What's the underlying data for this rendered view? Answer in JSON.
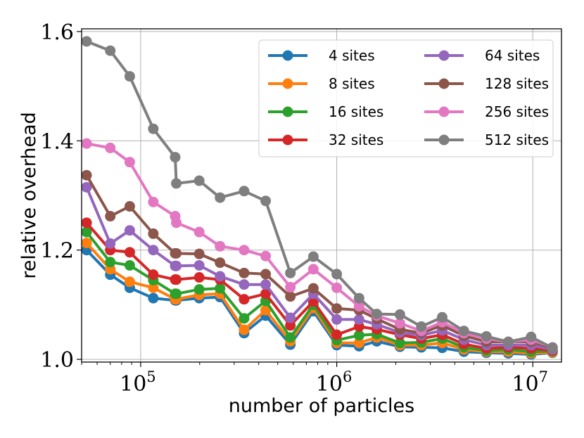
{
  "chart_data": {
    "type": "line",
    "title": "",
    "xlabel": "number of particles",
    "ylabel": "relative overhead",
    "xscale": "log",
    "xlim": [
      50000,
      14000000
    ],
    "ylim": [
      0.995,
      1.605
    ],
    "x_ticks": [
      {
        "value": 100000,
        "base": "10",
        "exp": "5"
      },
      {
        "value": 1000000,
        "base": "10",
        "exp": "6"
      },
      {
        "value": 10000000,
        "base": "10",
        "exp": "7"
      }
    ],
    "y_ticks": [
      {
        "value": 1.0,
        "label": "1.0"
      },
      {
        "value": 1.2,
        "label": "1.2"
      },
      {
        "value": 1.4,
        "label": "1.4"
      },
      {
        "value": 1.6,
        "label": "1.6"
      }
    ],
    "grid": true,
    "legend_position": "top-right",
    "legend_columns": 2,
    "x": [
      53000,
      70000,
      88000,
      116000,
      150000,
      152000,
      199000,
      254000,
      337000,
      434000,
      580000,
      760000,
      1000000,
      1300000,
      1600000,
      2100000,
      2700000,
      3450000,
      4450000,
      5800000,
      7500000,
      9800000,
      12600000
    ],
    "series": [
      {
        "name": "4 sites",
        "color": "#1f77b4",
        "values": [
          1.2,
          1.155,
          1.131,
          1.112,
          1.108,
          1.108,
          1.112,
          1.114,
          1.048,
          1.08,
          1.027,
          1.088,
          1.026,
          1.024,
          1.033,
          1.023,
          1.022,
          1.021,
          1.014,
          1.012,
          1.011,
          1.009,
          1.012
        ]
      },
      {
        "name": "8 sites",
        "color": "#ff7f0e",
        "values": [
          1.213,
          1.165,
          1.142,
          1.131,
          1.11,
          1.11,
          1.118,
          1.12,
          1.054,
          1.09,
          1.033,
          1.094,
          1.03,
          1.03,
          1.04,
          1.026,
          1.026,
          1.03,
          1.018,
          1.014,
          1.014,
          1.011,
          1.013
        ]
      },
      {
        "name": "16 sites",
        "color": "#2ca02c",
        "values": [
          1.233,
          1.178,
          1.172,
          1.145,
          1.12,
          1.12,
          1.128,
          1.13,
          1.075,
          1.107,
          1.04,
          1.1,
          1.035,
          1.044,
          1.046,
          1.03,
          1.031,
          1.038,
          1.022,
          1.016,
          1.018,
          1.014,
          1.015
        ]
      },
      {
        "name": "32 sites",
        "color": "#d62728",
        "values": [
          1.25,
          1.2,
          1.196,
          1.155,
          1.146,
          1.146,
          1.15,
          1.146,
          1.11,
          1.12,
          1.062,
          1.106,
          1.045,
          1.06,
          1.055,
          1.045,
          1.038,
          1.045,
          1.028,
          1.02,
          1.022,
          1.02,
          1.016
        ]
      },
      {
        "name": "64 sites",
        "color": "#9467bd",
        "values": [
          1.315,
          1.212,
          1.236,
          1.2,
          1.171,
          1.171,
          1.172,
          1.152,
          1.137,
          1.137,
          1.076,
          1.12,
          1.073,
          1.073,
          1.064,
          1.049,
          1.044,
          1.053,
          1.036,
          1.026,
          1.026,
          1.026,
          1.018
        ]
      },
      {
        "name": "128 sites",
        "color": "#8c564b",
        "values": [
          1.337,
          1.262,
          1.28,
          1.23,
          1.194,
          1.194,
          1.193,
          1.177,
          1.158,
          1.156,
          1.115,
          1.13,
          1.093,
          1.09,
          1.074,
          1.055,
          1.048,
          1.062,
          1.043,
          1.032,
          1.032,
          1.032,
          1.021
        ]
      },
      {
        "name": "256 sites",
        "color": "#e377c2",
        "values": [
          1.395,
          1.387,
          1.361,
          1.288,
          1.262,
          1.25,
          1.233,
          1.207,
          1.2,
          1.189,
          1.132,
          1.165,
          1.131,
          1.097,
          1.08,
          1.066,
          1.052,
          1.068,
          1.048,
          1.038,
          1.032,
          1.036,
          1.022
        ]
      },
      {
        "name": "512 sites",
        "color": "#7f7f7f",
        "values": [
          1.582,
          1.565,
          1.518,
          1.422,
          1.37,
          1.322,
          1.327,
          1.296,
          1.308,
          1.29,
          1.158,
          1.188,
          1.156,
          1.112,
          1.083,
          1.082,
          1.06,
          1.077,
          1.052,
          1.042,
          1.032,
          1.041,
          1.021
        ]
      }
    ]
  }
}
